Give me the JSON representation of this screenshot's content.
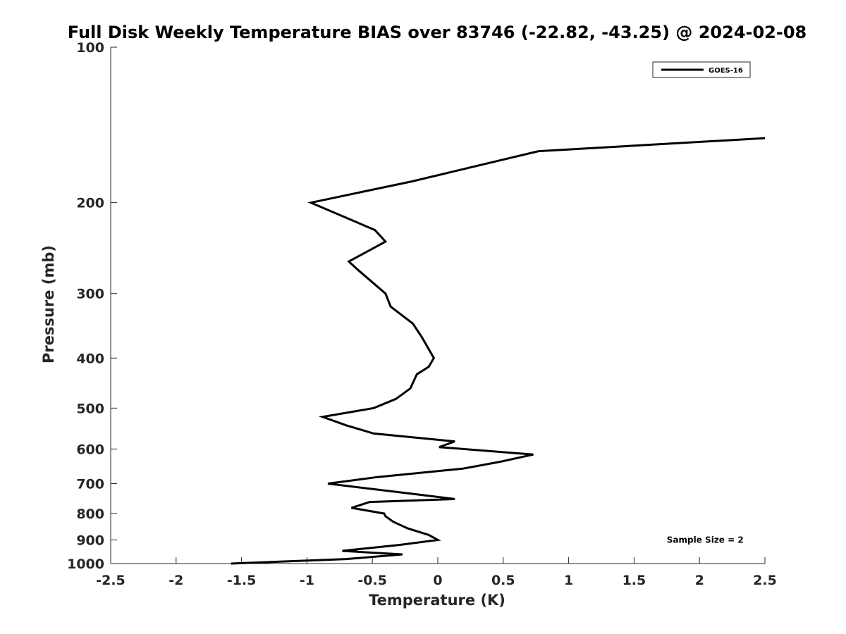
{
  "chart_data": {
    "type": "line",
    "title": "Full Disk Weekly Temperature BIAS over 83746 (-22.82, -43.25) @ 2024-02-08",
    "xlabel": "Temperature (K)",
    "ylabel": "Pressure (mb)",
    "xlim": [
      -2.5,
      2.5
    ],
    "ylim": [
      1000,
      100
    ],
    "yscale": "log",
    "y_reversed": true,
    "xticks": [
      -2.5,
      -2,
      -1.5,
      -1,
      -0.5,
      0,
      0.5,
      1,
      1.5,
      2,
      2.5
    ],
    "xtick_labels": [
      "-2.5",
      "-2",
      "-1.5",
      "-1",
      "-0.5",
      "0",
      "0.5",
      "1",
      "1.5",
      "2",
      "2.5"
    ],
    "yticks": [
      100,
      200,
      300,
      400,
      500,
      600,
      700,
      800,
      900,
      1000
    ],
    "ytick_labels": [
      "100",
      "200",
      "300",
      "400",
      "500",
      "600",
      "700",
      "800",
      "900",
      "1000"
    ],
    "grid": false,
    "legend_position": "top-right",
    "series": [
      {
        "name": "GOES-16",
        "color": "#000000",
        "x": [
          2.5,
          0.77,
          -0.2,
          -0.97,
          -0.48,
          -0.4,
          -0.68,
          -0.61,
          -0.4,
          -0.36,
          -0.19,
          -0.12,
          -0.03,
          -0.07,
          -0.16,
          -0.21,
          -0.32,
          -0.49,
          -0.88,
          -0.7,
          -0.49,
          0.13,
          0.01,
          0.73,
          0.48,
          0.19,
          -0.46,
          -0.84,
          -0.25,
          0.13,
          -0.52,
          -0.66,
          -0.41,
          -0.4,
          -0.34,
          -0.23,
          -0.07,
          0.0,
          -0.29,
          -0.73,
          -0.27,
          -0.7,
          -1.58
        ],
        "y": [
          150,
          159,
          182,
          200,
          226,
          238,
          260,
          270,
          300,
          318,
          343,
          365,
          400,
          416,
          430,
          458,
          480,
          500,
          520,
          540,
          560,
          580,
          595,
          615,
          635,
          655,
          680,
          700,
          730,
          750,
          760,
          780,
          800,
          810,
          830,
          855,
          880,
          900,
          920,
          945,
          960,
          980,
          1000
        ]
      }
    ],
    "annotations": [
      {
        "text": "Sample Size = 2",
        "x": 1.75,
        "y": 900
      }
    ]
  }
}
